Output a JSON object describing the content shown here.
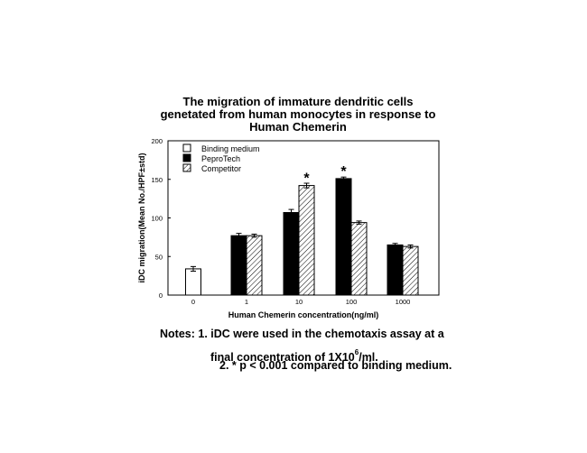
{
  "title_lines": [
    "The migration of immature dendritic cells",
    "genetated from human monocytes in response to",
    "Human Chemerin"
  ],
  "notes": {
    "line1": "Notes: 1. iDC were used in the chemotaxis assay at a",
    "line2_a": "final concentration of 1X10",
    "line2_sup": "6",
    "line2_b": "/ml.",
    "line3": "2. * p < 0.001 compared to binding medium."
  },
  "chart_data": {
    "type": "bar",
    "title": "The migration of immature dendritic cells genetated from human monocytes in response to Human Chemerin",
    "xlabel": "Human Chemerin concentration(ng/ml)",
    "ylabel": "iDC migration(Mean No./HPF±std)",
    "categories": [
      "0",
      "1",
      "10",
      "100",
      "1000"
    ],
    "ylim": [
      0,
      200
    ],
    "yticks": [
      0,
      50,
      100,
      150,
      200
    ],
    "legend_position": "top-left",
    "series": [
      {
        "name": "Binding medium",
        "fill": "white",
        "values": [
          34,
          null,
          null,
          null,
          null
        ],
        "errors": [
          3,
          null,
          null,
          null,
          null
        ]
      },
      {
        "name": "PeproTech",
        "fill": "black",
        "values": [
          null,
          77,
          107,
          151,
          65
        ],
        "errors": [
          null,
          3,
          4,
          2,
          2
        ]
      },
      {
        "name": "Competitor",
        "fill": "hatched",
        "values": [
          null,
          77,
          142,
          94,
          63
        ],
        "errors": [
          null,
          2,
          3,
          2,
          2
        ]
      }
    ],
    "significance_markers": [
      {
        "category": "10",
        "series": "Competitor",
        "label": "*"
      },
      {
        "category": "100",
        "series": "PeproTech",
        "label": "*"
      }
    ]
  }
}
